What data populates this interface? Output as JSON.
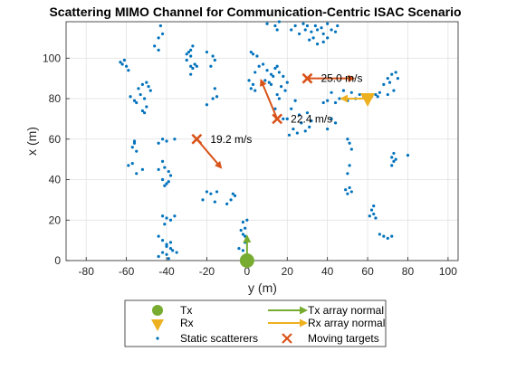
{
  "chart_data": {
    "type": "scatter",
    "title": "Scattering MIMO Channel for Communication-Centric ISAC Scenario",
    "xlabel": "y (m)",
    "ylabel": "x (m)",
    "xlim": [
      -90,
      105
    ],
    "ylim": [
      0,
      118
    ],
    "xticks": [
      -80,
      -60,
      -40,
      -20,
      0,
      20,
      40,
      60,
      80,
      100
    ],
    "yticks": [
      0,
      20,
      40,
      60,
      80,
      100
    ],
    "grid": true,
    "legend_position": "bottom-outside",
    "colors": {
      "tx": "#77AC30",
      "rx": "#EDB120",
      "scatter": "#0072BD",
      "target": "#D95319"
    },
    "tx": {
      "name": "Tx",
      "y": 0,
      "x": 0
    },
    "rx": {
      "name": "Rx",
      "y": 60,
      "x": 80
    },
    "tx_array_normal": {
      "name": "Tx array normal",
      "from": [
        0,
        3
      ],
      "to": [
        0,
        12
      ]
    },
    "rx_array_normal": {
      "name": "Rx array normal",
      "from": [
        62,
        80
      ],
      "to": [
        47,
        80
      ]
    },
    "static_scatterers": {
      "name": "Static scatterers",
      "points": [
        [
          -63,
          98
        ],
        [
          -61,
          99
        ],
        [
          -60,
          96
        ],
        [
          -59,
          94
        ],
        [
          -62,
          97
        ],
        [
          -58,
          81
        ],
        [
          -56,
          79
        ],
        [
          -54,
          85
        ],
        [
          -53,
          82
        ],
        [
          -52,
          87
        ],
        [
          -51,
          80
        ],
        [
          -50,
          88
        ],
        [
          -49,
          86
        ],
        [
          -52,
          74
        ],
        [
          -50,
          76
        ],
        [
          -51,
          73
        ],
        [
          -48,
          84
        ],
        [
          -55,
          78
        ],
        [
          -57,
          56
        ],
        [
          -56,
          59
        ],
        [
          -55,
          54
        ],
        [
          -57,
          48
        ],
        [
          -55,
          43
        ],
        [
          -52,
          45
        ],
        [
          -59,
          47
        ],
        [
          -56,
          58
        ],
        [
          -44,
          58
        ],
        [
          -42,
          60
        ],
        [
          -40,
          59
        ],
        [
          -36,
          60
        ],
        [
          -44,
          45
        ],
        [
          -42,
          49
        ],
        [
          -39,
          44
        ],
        [
          -38,
          42
        ],
        [
          -41,
          46
        ],
        [
          -42,
          40
        ],
        [
          -40,
          38
        ],
        [
          -39,
          39
        ],
        [
          -41,
          37
        ],
        [
          -42,
          22
        ],
        [
          -40,
          21
        ],
        [
          -38,
          20
        ],
        [
          -36,
          22
        ],
        [
          -41,
          18
        ],
        [
          -44,
          12
        ],
        [
          -42,
          10
        ],
        [
          -40,
          8
        ],
        [
          -38,
          6
        ],
        [
          -42,
          4
        ],
        [
          -40,
          3
        ],
        [
          -37,
          5
        ],
        [
          -44,
          2
        ],
        [
          -39,
          1
        ],
        [
          -35,
          4
        ],
        [
          -40,
          7
        ],
        [
          -38,
          9
        ],
        [
          -46,
          106
        ],
        [
          -44,
          110
        ],
        [
          -43,
          116
        ],
        [
          -42,
          112
        ],
        [
          -44,
          104
        ],
        [
          -29,
          103
        ],
        [
          -28,
          101
        ],
        [
          -27,
          106
        ],
        [
          -30,
          99
        ],
        [
          -20,
          103
        ],
        [
          -18,
          96
        ],
        [
          -17,
          101
        ],
        [
          -16,
          99
        ],
        [
          -26,
          97
        ],
        [
          -28,
          92
        ],
        [
          -25,
          96
        ],
        [
          -20,
          77
        ],
        [
          -16,
          85
        ],
        [
          -15,
          81
        ],
        [
          -17,
          80
        ],
        [
          -28,
          104
        ],
        [
          -30,
          102
        ],
        [
          -28,
          96
        ],
        [
          -27,
          95
        ],
        [
          -20,
          34
        ],
        [
          -18,
          33
        ],
        [
          -15,
          34
        ],
        [
          -16,
          29
        ],
        [
          -22,
          30
        ],
        [
          -8,
          30
        ],
        [
          -6,
          32
        ],
        [
          -10,
          28
        ],
        [
          -7,
          33
        ],
        [
          -2,
          19
        ],
        [
          -1,
          16
        ],
        [
          0,
          20
        ],
        [
          -3,
          15
        ],
        [
          -2,
          13
        ],
        [
          -1,
          12
        ],
        [
          -4,
          6
        ],
        [
          -2,
          5
        ],
        [
          -1,
          9
        ],
        [
          2,
          103
        ],
        [
          3,
          102
        ],
        [
          5,
          101
        ],
        [
          4,
          93
        ],
        [
          6,
          96
        ],
        [
          8,
          97
        ],
        [
          10,
          94
        ],
        [
          12,
          92
        ],
        [
          14,
          95
        ],
        [
          9,
          89
        ],
        [
          11,
          88
        ],
        [
          13,
          91
        ],
        [
          15,
          96
        ],
        [
          16,
          93
        ],
        [
          18,
          91
        ],
        [
          20,
          88
        ],
        [
          17,
          86
        ],
        [
          19,
          84
        ],
        [
          16,
          80
        ],
        [
          14,
          75
        ],
        [
          18,
          70
        ],
        [
          15,
          82
        ],
        [
          12,
          87
        ],
        [
          2,
          85
        ],
        [
          3,
          87
        ],
        [
          1,
          89
        ],
        [
          4,
          84
        ],
        [
          10,
          117
        ],
        [
          14,
          116
        ],
        [
          15,
          114
        ],
        [
          16,
          118
        ],
        [
          22,
          114
        ],
        [
          24,
          116
        ],
        [
          26,
          112
        ],
        [
          28,
          117
        ],
        [
          29,
          114
        ],
        [
          30,
          116
        ],
        [
          32,
          113
        ],
        [
          34,
          116
        ],
        [
          35,
          114
        ],
        [
          37,
          115
        ],
        [
          38,
          112
        ],
        [
          40,
          117
        ],
        [
          33,
          110
        ],
        [
          31,
          109
        ],
        [
          35,
          107
        ],
        [
          38,
          108
        ],
        [
          40,
          110
        ],
        [
          42,
          114
        ],
        [
          44,
          113
        ],
        [
          45,
          116
        ],
        [
          22,
          75
        ],
        [
          24,
          79
        ],
        [
          26,
          72
        ],
        [
          20,
          70
        ],
        [
          23,
          65
        ],
        [
          25,
          63
        ],
        [
          21,
          62
        ],
        [
          27,
          68
        ],
        [
          30,
          73
        ],
        [
          32,
          69
        ],
        [
          31,
          66
        ],
        [
          29,
          64
        ],
        [
          40,
          65
        ],
        [
          42,
          70
        ],
        [
          44,
          68
        ],
        [
          38,
          78
        ],
        [
          40,
          79
        ],
        [
          42,
          83
        ],
        [
          44,
          78
        ],
        [
          46,
          80
        ],
        [
          48,
          84
        ],
        [
          50,
          79
        ],
        [
          52,
          83
        ],
        [
          54,
          80
        ],
        [
          56,
          82
        ],
        [
          58,
          81
        ],
        [
          60,
          82
        ],
        [
          62,
          81
        ],
        [
          64,
          82
        ],
        [
          65,
          81
        ],
        [
          66,
          83
        ],
        [
          50,
          60
        ],
        [
          51,
          58
        ],
        [
          52,
          55
        ],
        [
          51,
          47
        ],
        [
          50,
          43
        ],
        [
          49,
          35
        ],
        [
          50,
          33
        ],
        [
          52,
          34
        ],
        [
          51,
          36
        ],
        [
          62,
          25
        ],
        [
          63,
          23
        ],
        [
          64,
          21
        ],
        [
          63,
          27
        ],
        [
          61,
          22
        ],
        [
          66,
          13
        ],
        [
          68,
          12
        ],
        [
          70,
          11
        ],
        [
          72,
          12
        ],
        [
          72,
          47
        ],
        [
          73,
          49
        ],
        [
          74,
          50
        ],
        [
          72,
          51
        ],
        [
          73,
          53
        ],
        [
          80,
          52
        ],
        [
          68,
          87
        ],
        [
          70,
          90
        ],
        [
          72,
          92
        ],
        [
          74,
          93
        ],
        [
          71,
          88
        ],
        [
          73,
          84
        ],
        [
          75,
          90
        ],
        [
          70,
          82
        ]
      ]
    },
    "moving_targets": {
      "name": "Moving targets",
      "items": [
        {
          "y": -25,
          "x": 60,
          "velocity_to": [
            -13,
            46
          ],
          "label": "19.2 m/s"
        },
        {
          "y": 15,
          "x": 70,
          "velocity_to": [
            7,
            89
          ],
          "label": "22.4 m/s"
        },
        {
          "y": 30,
          "x": 90,
          "velocity_to": [
            53,
            90
          ],
          "label": "25.0 m/s"
        }
      ]
    },
    "legend": {
      "left": [
        "Tx",
        "Rx",
        "Static scatterers"
      ],
      "right": [
        "Tx array normal",
        "Rx array normal",
        "Moving targets"
      ]
    }
  }
}
